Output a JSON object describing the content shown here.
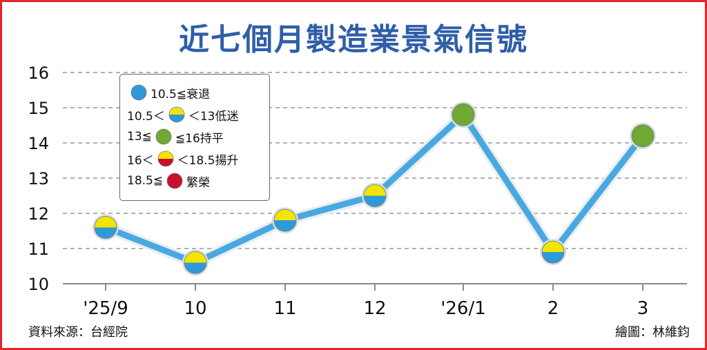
{
  "chart_data": {
    "type": "line",
    "title": "近七個月製造業景氣信號",
    "categories": [
      "'25/9",
      "10",
      "11",
      "12",
      "'26/1",
      "2",
      "3"
    ],
    "values": [
      11.6,
      10.6,
      11.8,
      12.5,
      14.8,
      10.9,
      14.2
    ],
    "point_signal": [
      "low",
      "low",
      "low",
      "low",
      "stable",
      "low",
      "stable"
    ],
    "ylim": [
      10,
      16
    ],
    "yticks": [
      10,
      11,
      12,
      13,
      14,
      15,
      16
    ],
    "grid": true,
    "legend_position": "top-left",
    "legend": [
      {
        "before": "",
        "after": "10.5≦衰退",
        "signal": "recession"
      },
      {
        "before": "10.5＜",
        "after": "＜13低迷",
        "signal": "low"
      },
      {
        "before": "13≦",
        "after": "≦16持平",
        "signal": "stable"
      },
      {
        "before": "16＜",
        "after": "＜18.5揚升",
        "signal": "rising"
      },
      {
        "before": "18.5≦",
        "after": "繁榮",
        "signal": "boom"
      }
    ],
    "colors": {
      "line": "#4aa8e0",
      "blue": "#2e9ad8",
      "yellow": "#f2e600",
      "green": "#6fa832",
      "red": "#c8102e",
      "grid": "#b0b0b0"
    }
  },
  "source": "資料來源：台經院",
  "credit": "繪圖：林維鈞"
}
